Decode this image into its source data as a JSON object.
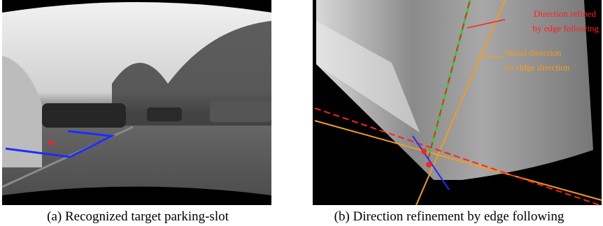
{
  "figures": [
    {
      "caption": "(a) Recognized target parking-slot"
    },
    {
      "caption": "(b) Direction refinement by edge following",
      "annotations": [
        {
          "lines": [
            "Direction refined",
            "by edge following"
          ]
        },
        {
          "lines": [
            "Initial direction",
            "by ridge direction"
          ]
        }
      ]
    }
  ]
}
